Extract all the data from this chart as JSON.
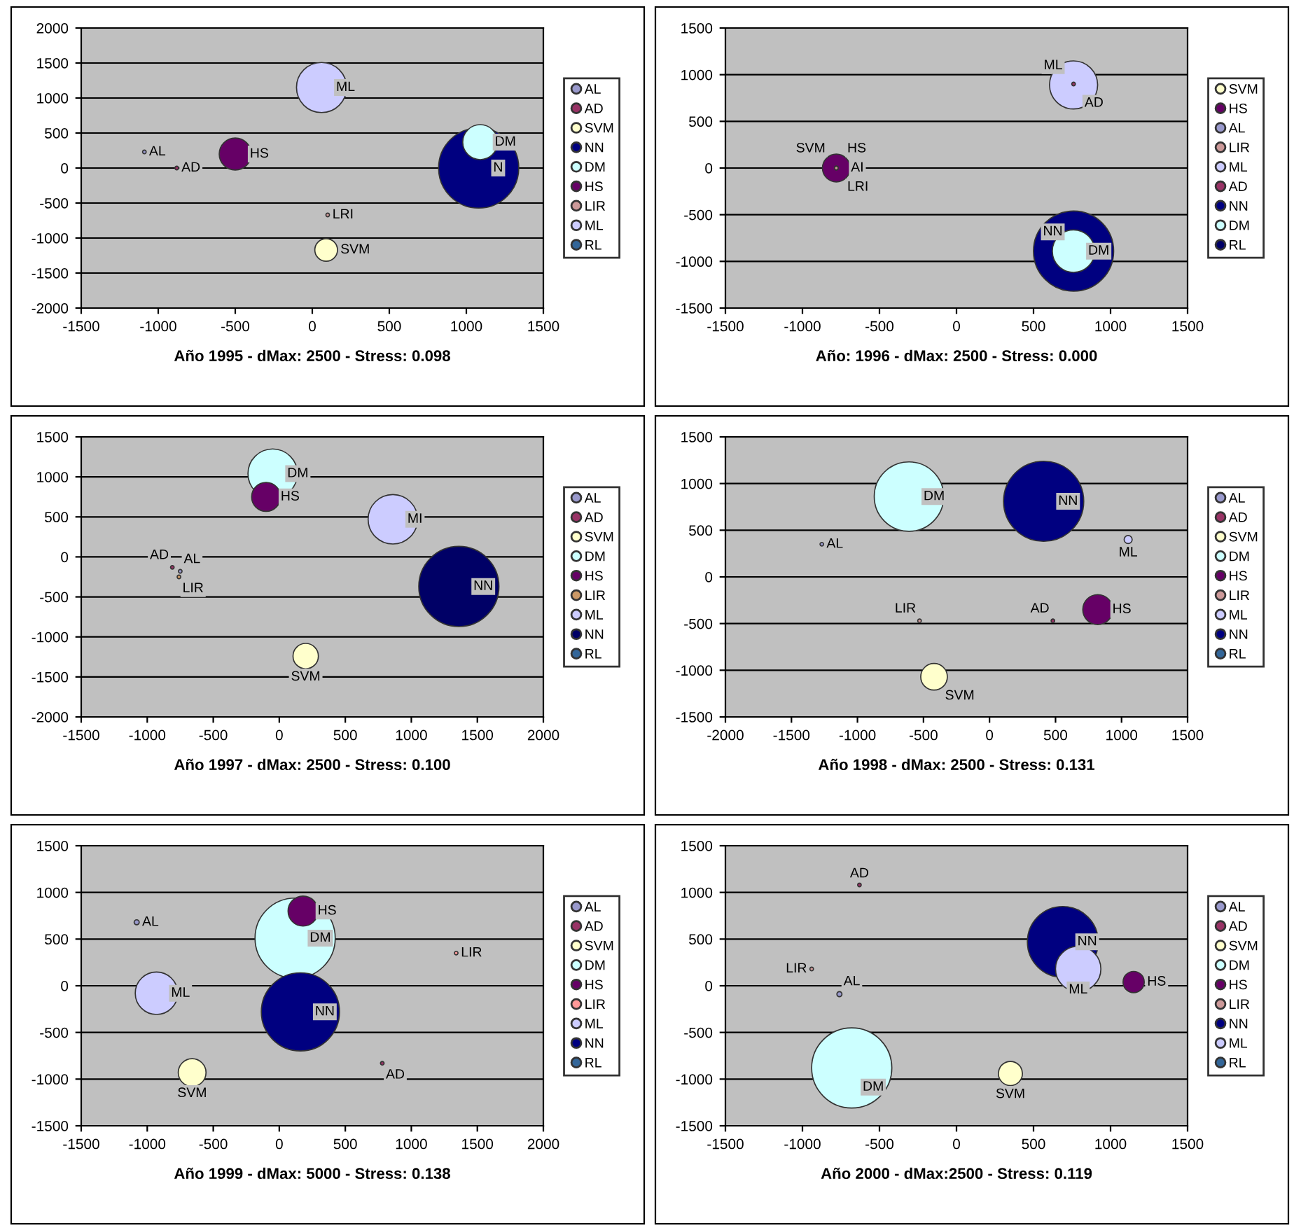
{
  "chart_data": [
    {
      "type": "bubble",
      "xlabel": "Año 1995 - dMax: 2500 - Stress: 0.098",
      "xlim": [
        -1500,
        1500
      ],
      "xticks": [
        -1500,
        -1000,
        -500,
        0,
        500,
        1000,
        1500
      ],
      "ylim": [
        -2000,
        2000
      ],
      "yticks": [
        -2000,
        -1500,
        -1000,
        -500,
        0,
        500,
        1000,
        1500,
        2000
      ],
      "grid": "y",
      "legend": "right",
      "series": [
        {
          "name": "AL",
          "color": "#9999cc",
          "x": [
            -1090
          ],
          "values": [
            230
          ],
          "sizes": [
            0.002
          ]
        },
        {
          "name": "AD",
          "color": "#993366",
          "x": [
            -880
          ],
          "values": [
            0
          ],
          "sizes": [
            0.002
          ]
        },
        {
          "name": "SVM",
          "color": "#ffffcc",
          "x": [
            90
          ],
          "values": [
            -1170
          ],
          "sizes": [
            0.08
          ]
        },
        {
          "name": "NN",
          "color": "#000080",
          "x": [
            1080
          ],
          "values": [
            0
          ],
          "sizes": [
            1
          ]
        },
        {
          "name": "DM",
          "color": "#ccffff",
          "x": [
            1090
          ],
          "values": [
            370
          ],
          "sizes": [
            0.19
          ]
        },
        {
          "name": "HS",
          "color": "#660066",
          "x": [
            -500
          ],
          "values": [
            200
          ],
          "sizes": [
            0.16
          ]
        },
        {
          "name": "LIR",
          "color": "#cc9999",
          "x": [
            100
          ],
          "values": [
            -670
          ],
          "sizes": [
            0.002
          ]
        },
        {
          "name": "ML",
          "color": "#ccccff",
          "x": [
            60
          ],
          "values": [
            1150
          ],
          "sizes": [
            0.39
          ]
        },
        {
          "name": "RL",
          "color": "#336699",
          "x": [
            null
          ],
          "values": [
            null
          ],
          "sizes": [
            null
          ]
        }
      ],
      "annotations": [
        {
          "text": "AL",
          "x": -1090,
          "y": 230
        },
        {
          "text": "AD",
          "x": -880,
          "y": 0
        },
        {
          "text": "HS",
          "x": -500,
          "y": 200
        },
        {
          "text": "ML",
          "x": 60,
          "y": 1150
        },
        {
          "text": "LRI",
          "x": 100,
          "y": -670
        },
        {
          "text": "SVM",
          "x": 90,
          "y": -1170
        },
        {
          "text": "DM",
          "x": 1090,
          "y": 370
        },
        {
          "text": "N",
          "x": 1080,
          "y": 0
        }
      ]
    },
    {
      "type": "bubble",
      "xlabel": "Año: 1996 - dMax: 2500 - Stress: 0.000",
      "xlim": [
        -1500,
        1500
      ],
      "xticks": [
        -1500,
        -1000,
        -500,
        0,
        500,
        1000,
        1500
      ],
      "ylim": [
        -1500,
        1500
      ],
      "yticks": [
        -1500,
        -1000,
        -500,
        0,
        500,
        1000,
        1500
      ],
      "grid": "y",
      "legend": "right",
      "series": [
        {
          "name": "SVM",
          "color": "#ffffcc",
          "x": [
            -780
          ],
          "values": [
            0
          ],
          "sizes": [
            0.002
          ]
        },
        {
          "name": "HS",
          "color": "#660066",
          "x": [
            -780
          ],
          "values": [
            0
          ],
          "sizes": [
            0.12
          ]
        },
        {
          "name": "AL",
          "color": "#9999cc",
          "x": [
            -780
          ],
          "values": [
            0
          ],
          "sizes": [
            0.002
          ]
        },
        {
          "name": "LIR",
          "color": "#cc9999",
          "x": [
            -780
          ],
          "values": [
            0
          ],
          "sizes": [
            0.002
          ]
        },
        {
          "name": "ML",
          "color": "#ccccff",
          "x": [
            760
          ],
          "values": [
            890
          ],
          "sizes": [
            0.36
          ]
        },
        {
          "name": "AD",
          "color": "#993366",
          "x": [
            760
          ],
          "values": [
            900
          ],
          "sizes": [
            0.002
          ]
        },
        {
          "name": "NN",
          "color": "#000080",
          "x": [
            760
          ],
          "values": [
            -890
          ],
          "sizes": [
            1
          ]
        },
        {
          "name": "DM",
          "color": "#ccffff",
          "x": [
            760
          ],
          "values": [
            -890
          ],
          "sizes": [
            0.28
          ]
        },
        {
          "name": "RL",
          "color": "#000066",
          "x": [
            null
          ],
          "values": [
            null
          ],
          "sizes": [
            null
          ]
        }
      ],
      "annotations": [
        {
          "text": "ML",
          "x": 760,
          "y": 890
        },
        {
          "text": "AD",
          "x": 760,
          "y": 900
        },
        {
          "text": "SVM",
          "x": -780,
          "y": 0
        },
        {
          "text": "HS",
          "x": -780,
          "y": 0
        },
        {
          "text": "AI",
          "x": -780,
          "y": 0
        },
        {
          "text": "LRI",
          "x": -780,
          "y": 0
        },
        {
          "text": "NN",
          "x": 760,
          "y": -890
        },
        {
          "text": "DM",
          "x": 760,
          "y": -890
        }
      ]
    },
    {
      "type": "bubble",
      "xlabel": "Año 1997 - dMax: 2500 - Stress: 0.100",
      "xlim": [
        -1500,
        2000
      ],
      "xticks": [
        -1500,
        -1000,
        -500,
        0,
        500,
        1000,
        1500,
        2000
      ],
      "ylim": [
        -2000,
        1500
      ],
      "yticks": [
        -2000,
        -1500,
        -1000,
        -500,
        0,
        500,
        1000,
        1500
      ],
      "grid": "y",
      "legend": "right",
      "series": [
        {
          "name": "AL",
          "color": "#9999cc",
          "x": [
            -750
          ],
          "values": [
            -180
          ],
          "sizes": [
            0.002
          ]
        },
        {
          "name": "AD",
          "color": "#993366",
          "x": [
            -810
          ],
          "values": [
            -130
          ],
          "sizes": [
            0.002
          ]
        },
        {
          "name": "SVM",
          "color": "#ffffcc",
          "x": [
            200
          ],
          "values": [
            -1240
          ],
          "sizes": [
            0.1
          ]
        },
        {
          "name": "DM",
          "color": "#ccffff",
          "x": [
            -50
          ],
          "values": [
            1040
          ],
          "sizes": [
            0.38
          ]
        },
        {
          "name": "HS",
          "color": "#660066",
          "x": [
            -100
          ],
          "values": [
            750
          ],
          "sizes": [
            0.13
          ]
        },
        {
          "name": "LIR",
          "color": "#cc9966",
          "x": [
            -760
          ],
          "values": [
            -250
          ],
          "sizes": [
            0.002
          ]
        },
        {
          "name": "ML",
          "color": "#ccccff",
          "x": [
            860
          ],
          "values": [
            470
          ],
          "sizes": [
            0.38
          ]
        },
        {
          "name": "NN",
          "color": "#000066",
          "x": [
            1360
          ],
          "values": [
            -370
          ],
          "sizes": [
            1
          ]
        },
        {
          "name": "RL",
          "color": "#336699",
          "x": [
            null
          ],
          "values": [
            null
          ],
          "sizes": [
            null
          ]
        }
      ],
      "annotations": [
        {
          "text": "DM",
          "x": -50,
          "y": 1040
        },
        {
          "text": "HS",
          "x": -100,
          "y": 750
        },
        {
          "text": "MI",
          "x": 860,
          "y": 470
        },
        {
          "text": "NN",
          "x": 1360,
          "y": -370
        },
        {
          "text": "AD",
          "x": -810,
          "y": -130
        },
        {
          "text": "AL",
          "x": -750,
          "y": -180
        },
        {
          "text": "LIR",
          "x": -760,
          "y": -250
        },
        {
          "text": "SVM",
          "x": 200,
          "y": -1240
        }
      ]
    },
    {
      "type": "bubble",
      "xlabel": "Año 1998 - dMax: 2500 - Stress: 0.131",
      "xlim": [
        -2000,
        1500
      ],
      "xticks": [
        -2000,
        -1500,
        -1000,
        -500,
        0,
        500,
        1000,
        1500
      ],
      "ylim": [
        -1500,
        1500
      ],
      "yticks": [
        -1500,
        -1000,
        -500,
        0,
        500,
        1000,
        1500
      ],
      "grid": "y",
      "legend": "right",
      "series": [
        {
          "name": "AL",
          "color": "#9999cc",
          "x": [
            -1270
          ],
          "values": [
            350
          ],
          "sizes": [
            0.002
          ]
        },
        {
          "name": "AD",
          "color": "#993366",
          "x": [
            480
          ],
          "values": [
            -470
          ],
          "sizes": [
            0.002
          ]
        },
        {
          "name": "SVM",
          "color": "#ffffcc",
          "x": [
            -420
          ],
          "values": [
            -1070
          ],
          "sizes": [
            0.11
          ]
        },
        {
          "name": "DM",
          "color": "#ccffff",
          "x": [
            -610
          ],
          "values": [
            860
          ],
          "sizes": [
            0.75
          ]
        },
        {
          "name": "HS",
          "color": "#660066",
          "x": [
            820
          ],
          "values": [
            -350
          ],
          "sizes": [
            0.14
          ]
        },
        {
          "name": "LIR",
          "color": "#cc9999",
          "x": [
            -530
          ],
          "values": [
            -470
          ],
          "sizes": [
            0.002
          ]
        },
        {
          "name": "ML",
          "color": "#ccccff",
          "x": [
            1050
          ],
          "values": [
            400
          ],
          "sizes": [
            0.01
          ]
        },
        {
          "name": "NN",
          "color": "#000080",
          "x": [
            410
          ],
          "values": [
            810
          ],
          "sizes": [
            1
          ]
        },
        {
          "name": "RL",
          "color": "#336699",
          "x": [
            null
          ],
          "values": [
            null
          ],
          "sizes": [
            null
          ]
        }
      ],
      "annotations": [
        {
          "text": "DM",
          "x": -610,
          "y": 860
        },
        {
          "text": "NN",
          "x": 410,
          "y": 810
        },
        {
          "text": "AL",
          "x": -1270,
          "y": 350
        },
        {
          "text": "ML",
          "x": 1050,
          "y": 400
        },
        {
          "text": "LIR",
          "x": -530,
          "y": -470
        },
        {
          "text": "AD",
          "x": 480,
          "y": -470
        },
        {
          "text": "HS",
          "x": 820,
          "y": -350
        },
        {
          "text": "SVM",
          "x": -420,
          "y": -1070
        }
      ]
    },
    {
      "type": "bubble",
      "xlabel": "Año 1999 - dMax: 5000 - Stress: 0.138",
      "xlim": [
        -1500,
        2000
      ],
      "xticks": [
        -1500,
        -1000,
        -500,
        0,
        500,
        1000,
        1500,
        2000
      ],
      "ylim": [
        -1500,
        1500
      ],
      "yticks": [
        -1500,
        -1000,
        -500,
        0,
        500,
        1000,
        1500
      ],
      "grid": "y",
      "legend": "right",
      "series": [
        {
          "name": "AL",
          "color": "#9999cc",
          "x": [
            -1080
          ],
          "values": [
            680
          ],
          "sizes": [
            0.004
          ]
        },
        {
          "name": "AD",
          "color": "#993366",
          "x": [
            780
          ],
          "values": [
            -830
          ],
          "sizes": [
            0.002
          ]
        },
        {
          "name": "SVM",
          "color": "#ffffcc",
          "x": [
            -660
          ],
          "values": [
            -930
          ],
          "sizes": [
            0.12
          ]
        },
        {
          "name": "DM",
          "color": "#ccffff",
          "x": [
            120
          ],
          "values": [
            510
          ],
          "sizes": [
            1
          ]
        },
        {
          "name": "HS",
          "color": "#660066",
          "x": [
            180
          ],
          "values": [
            800
          ],
          "sizes": [
            0.14
          ]
        },
        {
          "name": "LIR",
          "color": "#ff9999",
          "x": [
            1340
          ],
          "values": [
            350
          ],
          "sizes": [
            0.002
          ]
        },
        {
          "name": "ML",
          "color": "#ccccff",
          "x": [
            -930
          ],
          "values": [
            -80
          ],
          "sizes": [
            0.28
          ]
        },
        {
          "name": "NN",
          "color": "#000080",
          "x": [
            160
          ],
          "values": [
            -280
          ],
          "sizes": [
            0.95
          ]
        },
        {
          "name": "RL",
          "color": "#336699",
          "x": [
            null
          ],
          "values": [
            null
          ],
          "sizes": [
            null
          ]
        }
      ],
      "annotations": [
        {
          "text": "AL",
          "x": -1080,
          "y": 680
        },
        {
          "text": "HS",
          "x": 180,
          "y": 800
        },
        {
          "text": "DM",
          "x": 120,
          "y": 510
        },
        {
          "text": "LIR",
          "x": 1340,
          "y": 350
        },
        {
          "text": "NN",
          "x": 160,
          "y": -280
        },
        {
          "text": "ML",
          "x": -930,
          "y": -80
        },
        {
          "text": "AD",
          "x": 780,
          "y": -830
        },
        {
          "text": "SVM",
          "x": -660,
          "y": -930
        }
      ]
    },
    {
      "type": "bubble",
      "xlabel": "Año 2000 - dMax:2500 - Stress: 0.119",
      "xlim": [
        -1500,
        1500
      ],
      "xticks": [
        -1500,
        -1000,
        -500,
        0,
        500,
        1000,
        1500
      ],
      "ylim": [
        -1500,
        1500
      ],
      "yticks": [
        -1500,
        -1000,
        -500,
        0,
        500,
        1000,
        1500
      ],
      "grid": "y",
      "legend": "right",
      "series": [
        {
          "name": "AL",
          "color": "#9999cc",
          "x": [
            -760
          ],
          "values": [
            -90
          ],
          "sizes": [
            0.004
          ]
        },
        {
          "name": "AD",
          "color": "#993366",
          "x": [
            -630
          ],
          "values": [
            1080
          ],
          "sizes": [
            0.002
          ]
        },
        {
          "name": "SVM",
          "color": "#ffffcc",
          "x": [
            350
          ],
          "values": [
            -940
          ],
          "sizes": [
            0.09
          ]
        },
        {
          "name": "DM",
          "color": "#ccffff",
          "x": [
            -680
          ],
          "values": [
            -880
          ],
          "sizes": [
            1
          ]
        },
        {
          "name": "HS",
          "color": "#660066",
          "x": [
            1150
          ],
          "values": [
            40
          ],
          "sizes": [
            0.07
          ]
        },
        {
          "name": "LIR",
          "color": "#cc9999",
          "x": [
            -940
          ],
          "values": [
            180
          ],
          "sizes": [
            0.002
          ]
        },
        {
          "name": "NN",
          "color": "#000080",
          "x": [
            690
          ],
          "values": [
            470
          ],
          "sizes": [
            0.78
          ]
        },
        {
          "name": "ML",
          "color": "#ccccff",
          "x": [
            790
          ],
          "values": [
            180
          ],
          "sizes": [
            0.32
          ]
        },
        {
          "name": "RL",
          "color": "#336699",
          "x": [
            null
          ],
          "values": [
            null
          ],
          "sizes": [
            null
          ]
        }
      ],
      "annotations": [
        {
          "text": "AD",
          "x": -630,
          "y": 1080
        },
        {
          "text": "LIR",
          "x": -940,
          "y": 180
        },
        {
          "text": "AL",
          "x": -760,
          "y": -90
        },
        {
          "text": "NN",
          "x": 690,
          "y": 470
        },
        {
          "text": "ML",
          "x": 790,
          "y": 180
        },
        {
          "text": "HS",
          "x": 1150,
          "y": 40
        },
        {
          "text": "DM",
          "x": -680,
          "y": -880
        },
        {
          "text": "SVM",
          "x": 350,
          "y": -940
        }
      ]
    }
  ]
}
